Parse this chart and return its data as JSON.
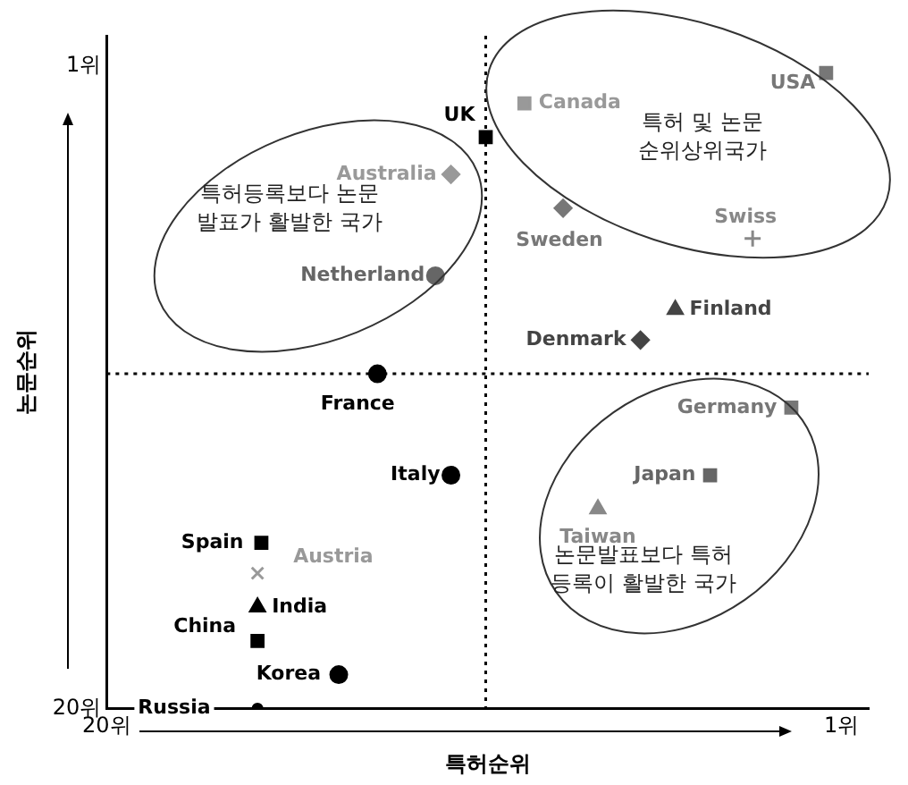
{
  "chart_data": {
    "type": "scatter",
    "xlabel": "특허순위",
    "ylabel": "논문순위",
    "xlim": [
      20,
      0.3
    ],
    "ylim": [
      20,
      0.1
    ],
    "xticks": [
      {
        "value": 20,
        "label": "20위"
      },
      {
        "value": 1,
        "label": "1위"
      }
    ],
    "yticks": [
      {
        "value": 20,
        "label": "20위"
      },
      {
        "value": 1,
        "label": "1위"
      }
    ],
    "grid": false,
    "legend": false,
    "ref_lines": [
      {
        "axis": "x",
        "value": 10.2,
        "line_style": "dotted",
        "color": "#000000"
      },
      {
        "axis": "y",
        "value": 10.1,
        "line_style": "dotted",
        "color": "#000000"
      }
    ],
    "annotations": [
      "특허등록보다 논문\n발표가 활발한 국가",
      "특허 및 논문\n순위상위국가",
      "논문발표보다 특허\n등록이 활발한 국가"
    ],
    "series": [
      {
        "name": "USA",
        "color": "#777777",
        "marker": "square",
        "x": [
          1.4
        ],
        "values": [
          1.2
        ]
      },
      {
        "name": "Canada",
        "color": "#999999",
        "marker": "square",
        "x": [
          9.2
        ],
        "values": [
          2.1
        ]
      },
      {
        "name": "UK",
        "color": "#000000",
        "marker": "square",
        "x": [
          10.2
        ],
        "values": [
          3.1
        ]
      },
      {
        "name": "Australia",
        "color": "#999999",
        "marker": "diamond",
        "x": [
          11.1
        ],
        "values": [
          4.2
        ]
      },
      {
        "name": "Sweden",
        "color": "#777777",
        "marker": "diamond",
        "x": [
          8.2
        ],
        "values": [
          5.2
        ]
      },
      {
        "name": "Swiss",
        "color": "#888888",
        "marker": "cross",
        "x": [
          3.3
        ],
        "values": [
          6.1
        ]
      },
      {
        "name": "Netherland",
        "color": "#666666",
        "marker": "circle",
        "x": [
          11.5
        ],
        "values": [
          7.2
        ]
      },
      {
        "name": "Finland",
        "color": "#444444",
        "marker": "triangle",
        "x": [
          5.3
        ],
        "values": [
          8.2
        ]
      },
      {
        "name": "Denmark",
        "color": "#444444",
        "marker": "diamond",
        "x": [
          6.2
        ],
        "values": [
          9.1
        ]
      },
      {
        "name": "France",
        "color": "#000000",
        "marker": "circle",
        "x": [
          13.0
        ],
        "values": [
          10.1
        ]
      },
      {
        "name": "Italy",
        "color": "#000000",
        "marker": "circle",
        "x": [
          11.1
        ],
        "values": [
          13.1
        ]
      },
      {
        "name": "Germany",
        "color": "#777777",
        "marker": "square",
        "x": [
          2.3
        ],
        "values": [
          11.1
        ]
      },
      {
        "name": "Japan",
        "color": "#666666",
        "marker": "square",
        "x": [
          4.4
        ],
        "values": [
          13.1
        ]
      },
      {
        "name": "Taiwan",
        "color": "#888888",
        "marker": "triangle",
        "x": [
          7.3
        ],
        "values": [
          14.1
        ]
      },
      {
        "name": "Spain",
        "color": "#000000",
        "marker": "square",
        "x": [
          16.0
        ],
        "values": [
          15.1
        ]
      },
      {
        "name": "Austria",
        "color": "#999999",
        "marker": "x",
        "x": [
          16.1
        ],
        "values": [
          16.0
        ]
      },
      {
        "name": "India",
        "color": "#000000",
        "marker": "triangle",
        "x": [
          16.1
        ],
        "values": [
          17.0
        ]
      },
      {
        "name": "China",
        "color": "#000000",
        "marker": "square",
        "x": [
          16.1
        ],
        "values": [
          18.0
        ]
      },
      {
        "name": "Korea",
        "color": "#000000",
        "marker": "circle",
        "x": [
          14.0
        ],
        "values": [
          19.0
        ]
      },
      {
        "name": "Russia",
        "color": "#000000",
        "marker": "circle",
        "x": [
          16.1
        ],
        "values": [
          20
        ]
      }
    ]
  }
}
